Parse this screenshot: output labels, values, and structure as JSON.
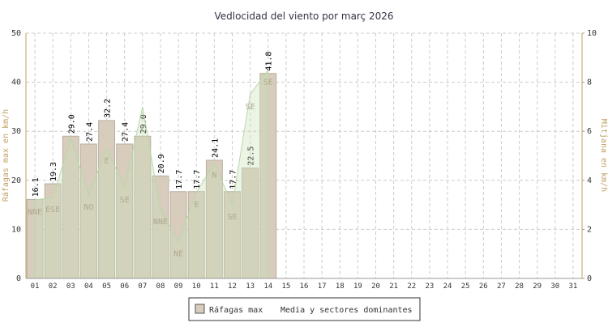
{
  "chart_data": {
    "type": "bar",
    "title": "Vedlocidad del viento por març 2026",
    "categories": [
      "01",
      "02",
      "03",
      "04",
      "05",
      "06",
      "07",
      "08",
      "09",
      "10",
      "11",
      "12",
      "13",
      "14",
      "15",
      "16",
      "17",
      "18",
      "19",
      "20",
      "21",
      "22",
      "23",
      "24",
      "25",
      "26",
      "27",
      "28",
      "29",
      "30",
      "31"
    ],
    "series": [
      {
        "name": "Ráfagas max",
        "color": "#d8ccbc",
        "values": [
          16.1,
          19.3,
          29.0,
          27.4,
          32.2,
          27.4,
          29.0,
          20.9,
          17.7,
          17.7,
          24.1,
          17.7,
          22.5,
          41.8,
          null,
          null,
          null,
          null,
          null,
          null,
          null,
          null,
          null,
          null,
          null,
          null,
          null,
          null,
          null,
          null,
          null
        ],
        "value_labels": [
          "16.1",
          "19.3",
          "29.0",
          "27.4",
          "32.2",
          "27.4",
          "29.0",
          "20.9",
          "17.7",
          "17.7",
          "24.1",
          "17.7",
          "22.5",
          "41.8",
          null,
          null,
          null,
          null,
          null,
          null,
          null,
          null,
          null,
          null,
          null,
          null,
          null,
          null,
          null,
          null,
          null
        ]
      },
      {
        "name": "Media y sectores dominantes",
        "color": "#c8e0b8",
        "axis": "y2",
        "values": [
          3.2,
          3.3,
          5.7,
          3.4,
          5.3,
          3.7,
          7.0,
          2.8,
          1.5,
          3.5,
          4.7,
          3.0,
          7.5,
          8.5,
          null,
          null,
          null,
          null,
          null,
          null,
          null,
          null,
          null,
          null,
          null,
          null,
          null,
          null,
          null,
          null,
          null
        ],
        "sectors": [
          "NNE",
          "ESE",
          null,
          "NO",
          "E",
          "SE",
          null,
          "NNE",
          "NE",
          "E",
          "N",
          "SE",
          "SE",
          "SE",
          null,
          null,
          null,
          null,
          null,
          null,
          null,
          null,
          null,
          null,
          null,
          null,
          null,
          null,
          null,
          null,
          null
        ]
      }
    ],
    "ylabel": "Ráfagas max en km/h",
    "y2label": "Mitjana en km/h",
    "ylim": [
      0,
      50
    ],
    "yticks": [
      0,
      10,
      20,
      30,
      40,
      50
    ],
    "y2lim": [
      0,
      10
    ],
    "y2ticks": [
      0,
      2,
      4,
      6,
      8,
      10
    ],
    "grid": true,
    "legend": "bottom"
  }
}
